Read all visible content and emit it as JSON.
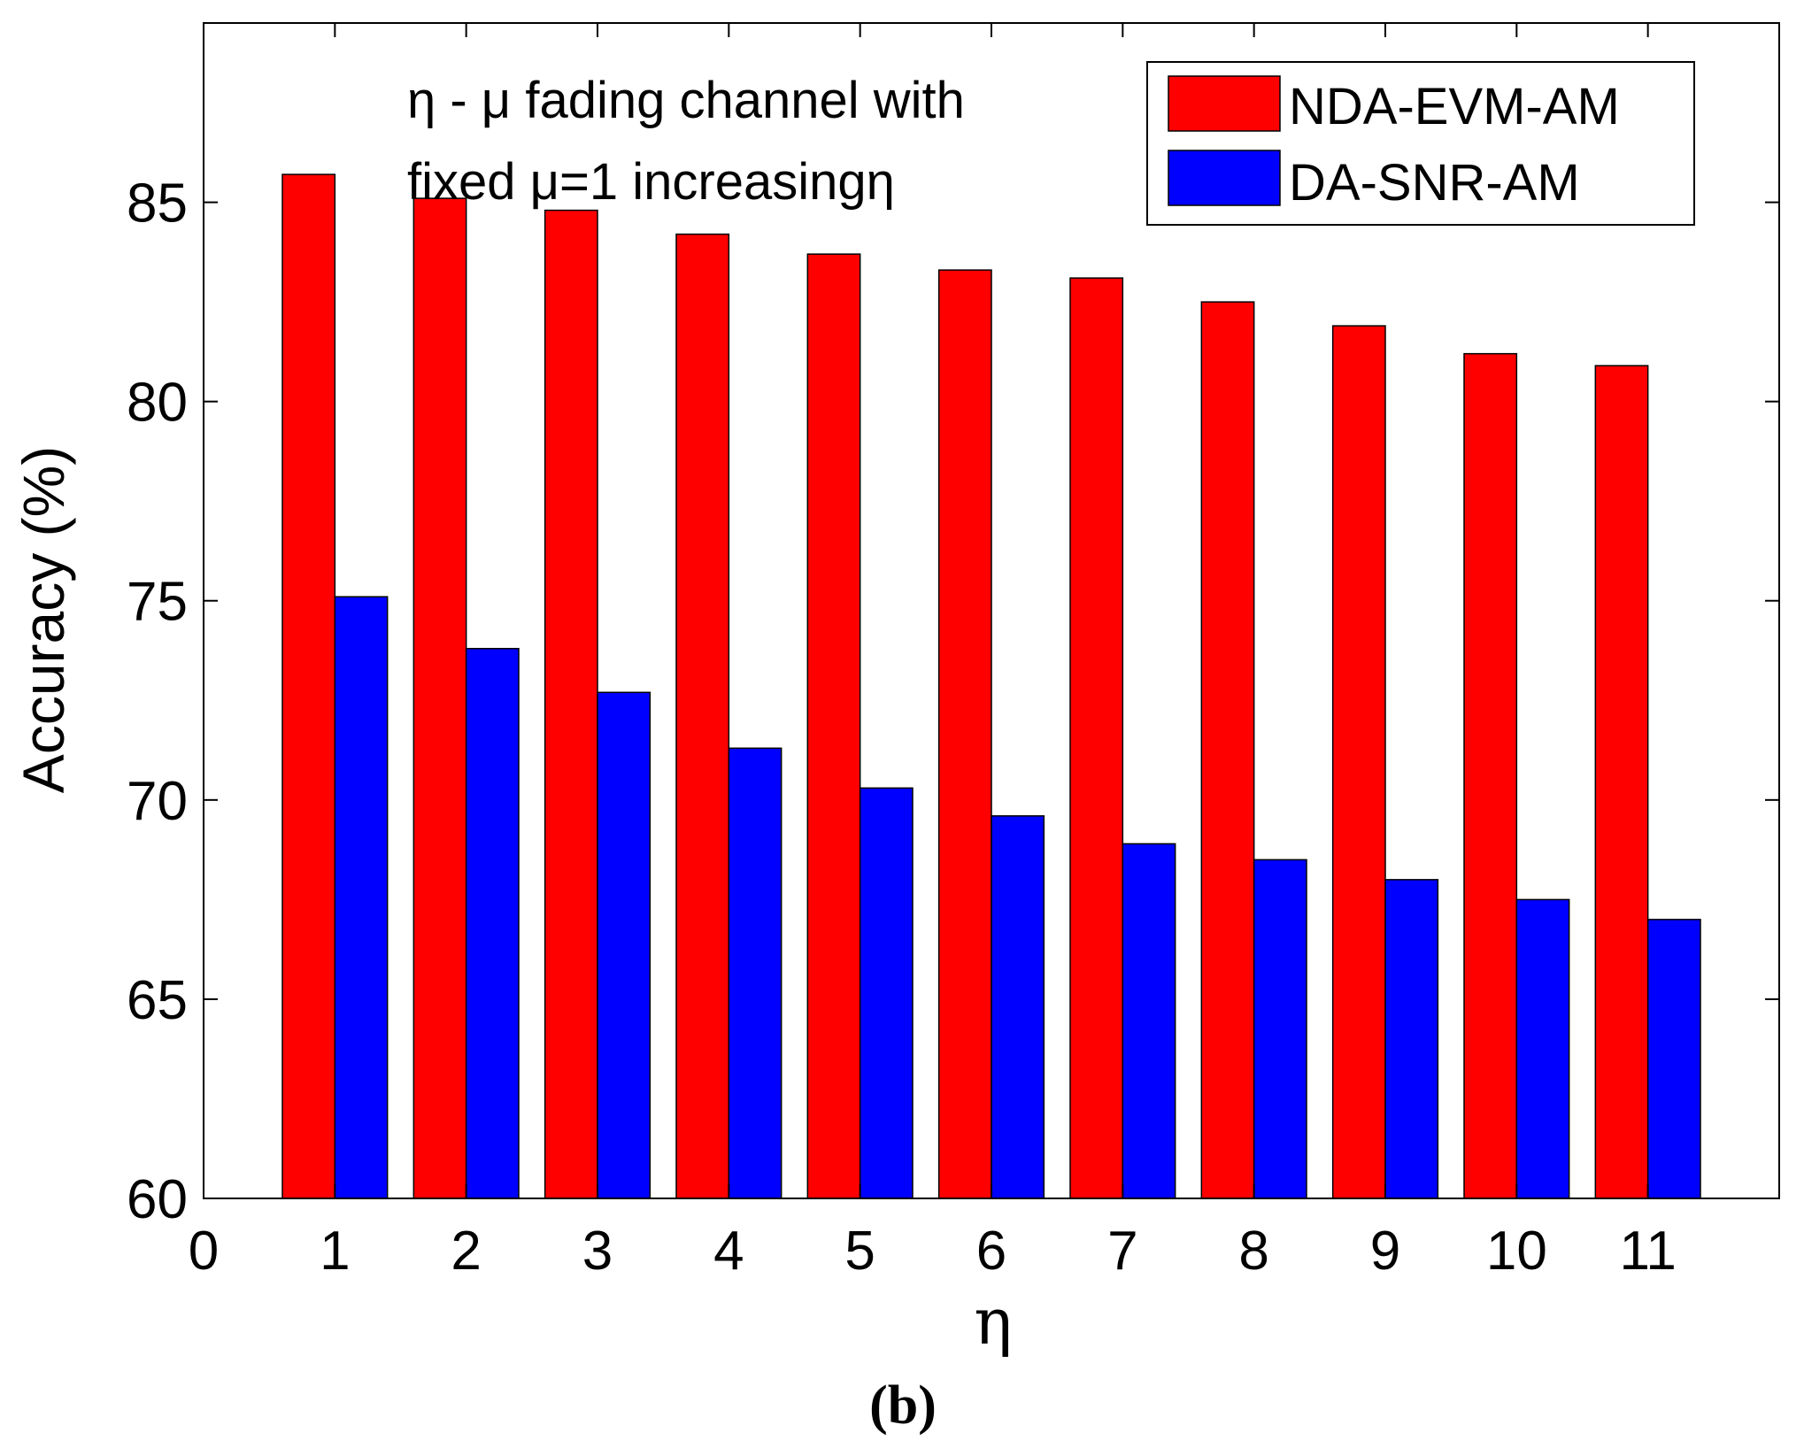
{
  "chart_data": {
    "type": "bar",
    "categories": [
      "1",
      "2",
      "3",
      "4",
      "5",
      "6",
      "7",
      "8",
      "9",
      "10",
      "11"
    ],
    "series": [
      {
        "name": "NDA-EVM-AM",
        "color": "#ff0000",
        "values": [
          85.7,
          85.1,
          84.8,
          84.2,
          83.7,
          83.3,
          83.1,
          82.5,
          81.9,
          81.2,
          80.9
        ]
      },
      {
        "name": "DA-SNR-AM",
        "color": "#0000ff",
        "values": [
          75.1,
          73.8,
          72.7,
          71.3,
          70.3,
          69.6,
          68.9,
          68.5,
          68.0,
          67.5,
          67.0
        ]
      }
    ],
    "title": "",
    "xlabel": "η",
    "ylabel": "Accuracy (%)",
    "ylim": [
      60,
      89.5
    ],
    "yticks": [
      60,
      65,
      70,
      75,
      80,
      85
    ],
    "xlim": [
      0,
      12
    ],
    "xticks": [
      "0",
      "1",
      "2",
      "3",
      "4",
      "5",
      "6",
      "7",
      "8",
      "9",
      "10",
      "11"
    ],
    "annotation_lines": [
      "η - μ fading channel with",
      "fixed μ=1 increasingη"
    ],
    "legend_position": "top-right",
    "caption": "(b)",
    "grid": false
  }
}
